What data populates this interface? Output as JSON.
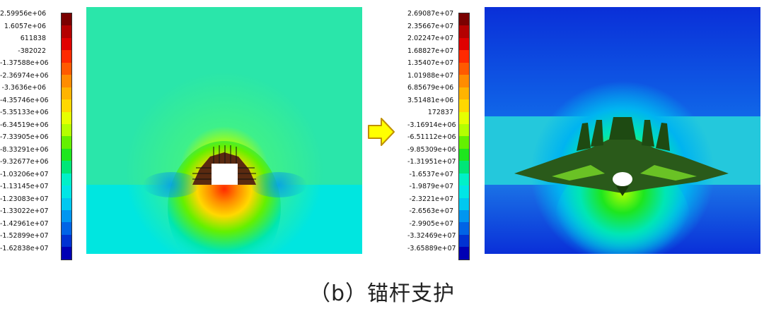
{
  "left_legend": {
    "labels": [
      "2.59956e+06",
      "1.6057e+06",
      "611838",
      "-382022",
      "-1.37588e+06",
      "-2.36974e+06",
      "-3.3636e+06",
      "-4.35746e+06",
      "-5.35133e+06",
      "-6.34519e+06",
      "-7.33905e+06",
      "-8.33291e+06",
      "-9.32677e+06",
      "-1.03206e+07",
      "-1.13145e+07",
      "-1.23083e+07",
      "-1.33022e+07",
      "-1.42961e+07",
      "-1.52899e+07",
      "-1.62838e+07"
    ]
  },
  "right_legend": {
    "labels": [
      "2.69087e+07",
      "2.35667e+07",
      "2.02247e+07",
      "1.68827e+07",
      "1.35407e+07",
      "1.01988e+07",
      "6.85679e+06",
      "3.51481e+06",
      "172837",
      "-3.16914e+06",
      "-6.51112e+06",
      "-9.85309e+06",
      "-1.31951e+07",
      "-1.6537e+07",
      "-1.9879e+07",
      "-2.3221e+07",
      "-2.6563e+07",
      "-2.9905e+07",
      "-3.32469e+07",
      "-3.65889e+07"
    ]
  },
  "colorscale": [
    "#7a0000",
    "#b40000",
    "#e00000",
    "#ff2a00",
    "#ff5a00",
    "#ff8c00",
    "#ffb400",
    "#ffd800",
    "#e6ff00",
    "#b4ff00",
    "#64f000",
    "#1ee61e",
    "#00e678",
    "#00f0c8",
    "#00e6e6",
    "#00c8f0",
    "#0096f0",
    "#0064e6",
    "#0032d2",
    "#0000b4"
  ],
  "caption": "（b）锚杆支护"
}
